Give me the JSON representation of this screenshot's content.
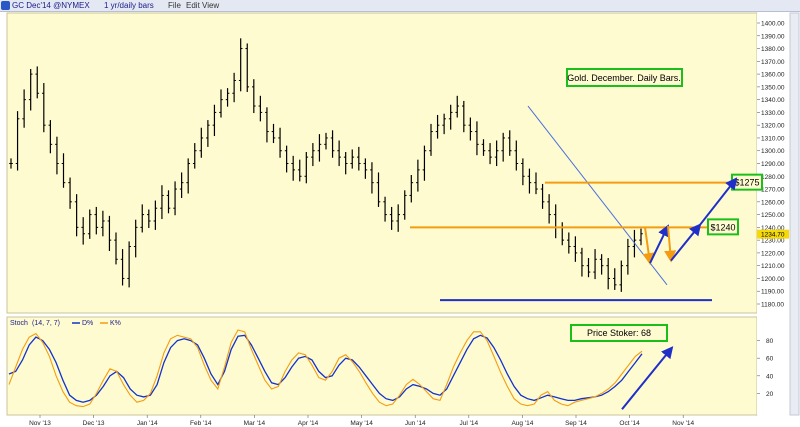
{
  "toolbar": {
    "symbol": "GC Dec'14 @NYMEX",
    "period": "1 yr/daily bars",
    "menu": [
      "File",
      "Edit",
      "View"
    ]
  },
  "colors": {
    "background": "#fffbd0",
    "bars": "#000000",
    "resistance": "#f39c12",
    "support": "#1f2fc8",
    "stochD": "#1133cc",
    "stochK": "#f39c12",
    "price_label": "#f5d90a",
    "note_border": "#1bbf1b"
  },
  "chart_data": [
    {
      "type": "ohlc",
      "title": "Gold. December. Daily Bars.",
      "x_ticks": [
        "Nov '13",
        "Dec '13",
        "Jan '14",
        "Feb '14",
        "Mar '14",
        "Apr '14",
        "May '14",
        "Jun '14",
        "Jul '14",
        "Aug '14",
        "Sep '14",
        "Oct '14",
        "Nov '14"
      ],
      "ylim": [
        1180,
        1400
      ],
      "y_ticks": [
        1180,
        1190,
        1200,
        1210,
        1220,
        1230,
        1240,
        1250,
        1260,
        1270,
        1280,
        1290,
        1300,
        1310,
        1320,
        1330,
        1340,
        1350,
        1360,
        1370,
        1380,
        1390,
        1400
      ],
      "last_price_label": "1234.70",
      "grid": false,
      "closes_approx": [
        1290,
        1325,
        1340,
        1360,
        1345,
        1320,
        1305,
        1290,
        1275,
        1260,
        1240,
        1235,
        1250,
        1240,
        1245,
        1230,
        1215,
        1200,
        1225,
        1240,
        1250,
        1245,
        1255,
        1265,
        1255,
        1270,
        1275,
        1290,
        1300,
        1310,
        1320,
        1330,
        1340,
        1345,
        1355,
        1380,
        1350,
        1335,
        1330,
        1315,
        1310,
        1300,
        1290,
        1285,
        1280,
        1295,
        1300,
        1305,
        1310,
        1300,
        1295,
        1290,
        1295,
        1290,
        1285,
        1275,
        1260,
        1250,
        1245,
        1250,
        1265,
        1275,
        1285,
        1300,
        1315,
        1320,
        1325,
        1330,
        1335,
        1320,
        1315,
        1305,
        1300,
        1295,
        1300,
        1310,
        1300,
        1290,
        1280,
        1275,
        1270,
        1260,
        1250,
        1240,
        1230,
        1225,
        1220,
        1210,
        1205,
        1215,
        1210,
        1200,
        1195,
        1210,
        1225,
        1230,
        1235
      ],
      "annotations": {
        "levels": [
          {
            "label": "$1275",
            "price": 1275
          },
          {
            "label": "$1240",
            "price": 1240
          }
        ],
        "support_price": 1183,
        "downtrend_line": {
          "from": [
            "Aug '14",
            1335
          ],
          "to": [
            "Oct '14",
            1195
          ]
        }
      }
    },
    {
      "type": "line",
      "title": "Stoch",
      "params": "(14, 7, 7)",
      "legend": [
        "D%",
        "K%"
      ],
      "ylim": [
        0,
        100
      ],
      "y_ticks": [
        20,
        40,
        60,
        80
      ],
      "note": "Price Stoker: 68",
      "series": [
        {
          "name": "D%",
          "values": [
            42,
            45,
            58,
            75,
            84,
            80,
            70,
            55,
            35,
            18,
            12,
            10,
            12,
            18,
            28,
            40,
            45,
            38,
            25,
            18,
            16,
            18,
            30,
            55,
            72,
            80,
            82,
            80,
            75,
            60,
            42,
            30,
            45,
            70,
            85,
            86,
            75,
            60,
            45,
            32,
            30,
            38,
            50,
            60,
            62,
            58,
            45,
            38,
            40,
            52,
            60,
            58,
            50,
            40,
            30,
            20,
            14,
            12,
            16,
            25,
            30,
            28,
            25,
            20,
            18,
            25,
            40,
            55,
            70,
            82,
            86,
            83,
            72,
            58,
            42,
            28,
            18,
            14,
            12,
            15,
            18,
            16,
            14,
            12,
            12,
            14,
            15,
            16,
            18,
            22,
            28,
            35,
            45,
            55,
            65
          ]
        },
        {
          "name": "K%",
          "values": [
            30,
            50,
            70,
            84,
            88,
            78,
            62,
            40,
            22,
            10,
            6,
            5,
            8,
            20,
            35,
            48,
            45,
            30,
            18,
            10,
            12,
            20,
            40,
            66,
            82,
            86,
            84,
            82,
            72,
            52,
            35,
            25,
            50,
            78,
            92,
            90,
            70,
            52,
            35,
            25,
            28,
            45,
            58,
            66,
            64,
            52,
            38,
            35,
            45,
            60,
            64,
            56,
            45,
            32,
            20,
            10,
            6,
            8,
            18,
            30,
            36,
            30,
            22,
            14,
            12,
            30,
            50,
            66,
            80,
            90,
            90,
            80,
            62,
            44,
            28,
            14,
            8,
            6,
            8,
            18,
            22,
            12,
            8,
            6,
            10,
            12,
            14,
            16,
            20,
            25,
            32,
            42,
            52,
            62,
            68
          ]
        }
      ]
    }
  ]
}
